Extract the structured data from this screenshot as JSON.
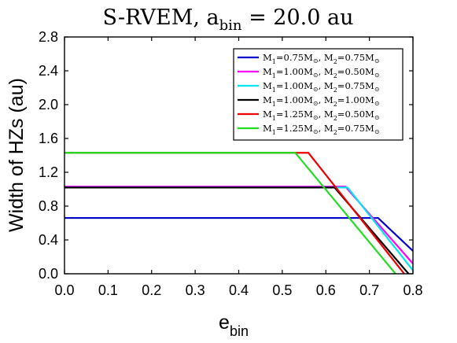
{
  "chart_data": {
    "type": "line",
    "title": {
      "main": "S-RVEM, a",
      "sub": "bin",
      "rest": " = 20.0 au"
    },
    "xlabel": {
      "main": "e",
      "sub": "bin"
    },
    "ylabel": "Width of HZs (au)",
    "xlim": [
      0,
      0.8
    ],
    "ylim": [
      0,
      2.8
    ],
    "xticks": [
      "0.0",
      "0.1",
      "0.2",
      "0.3",
      "0.4",
      "0.5",
      "0.6",
      "0.7",
      "0.8"
    ],
    "yticks": [
      "0.0",
      "0.4",
      "0.8",
      "1.2",
      "1.6",
      "2.0",
      "2.4",
      "2.8"
    ],
    "legend_position": "top-right",
    "grid": false,
    "series": [
      {
        "name": "M1=0.75M⊙, M2=0.75M⊙",
        "label": {
          "m1": "0.75",
          "m2": "0.75"
        },
        "color": "#0000cc",
        "x": [
          0.0,
          0.72,
          0.8
        ],
        "y": [
          0.66,
          0.66,
          0.27
        ]
      },
      {
        "name": "M1=1.00M⊙, M2=0.50M⊙",
        "label": {
          "m1": "1.00",
          "m2": "0.50"
        },
        "color": "#ff00ff",
        "x": [
          0.0,
          0.645,
          0.8
        ],
        "y": [
          1.03,
          1.03,
          0.12
        ]
      },
      {
        "name": "M1=1.00M⊙, M2=0.75M⊙",
        "label": {
          "m1": "1.00",
          "m2": "0.75"
        },
        "color": "#00e5ee",
        "x": [
          0.0,
          0.65,
          0.8
        ],
        "y": [
          1.02,
          1.02,
          0.04
        ]
      },
      {
        "name": "M1=1.00M⊙, M2=1.00M⊙",
        "label": {
          "m1": "1.00",
          "m2": "1.00"
        },
        "color": "#000000",
        "x": [
          0.0,
          0.62,
          0.79
        ],
        "y": [
          1.02,
          1.02,
          0.0
        ]
      },
      {
        "name": "M1=1.25M⊙, M2=0.50M⊙",
        "label": {
          "m1": "1.25",
          "m2": "0.50"
        },
        "color": "#ee0000",
        "x": [
          0.0,
          0.56,
          0.78
        ],
        "y": [
          1.43,
          1.43,
          0.0
        ]
      },
      {
        "name": "M1=1.25M⊙, M2=0.75M⊙",
        "label": {
          "m1": "1.25",
          "m2": "0.75"
        },
        "color": "#22dd22",
        "x": [
          0.0,
          0.53,
          0.76
        ],
        "y": [
          1.43,
          1.43,
          0.0
        ]
      }
    ]
  }
}
